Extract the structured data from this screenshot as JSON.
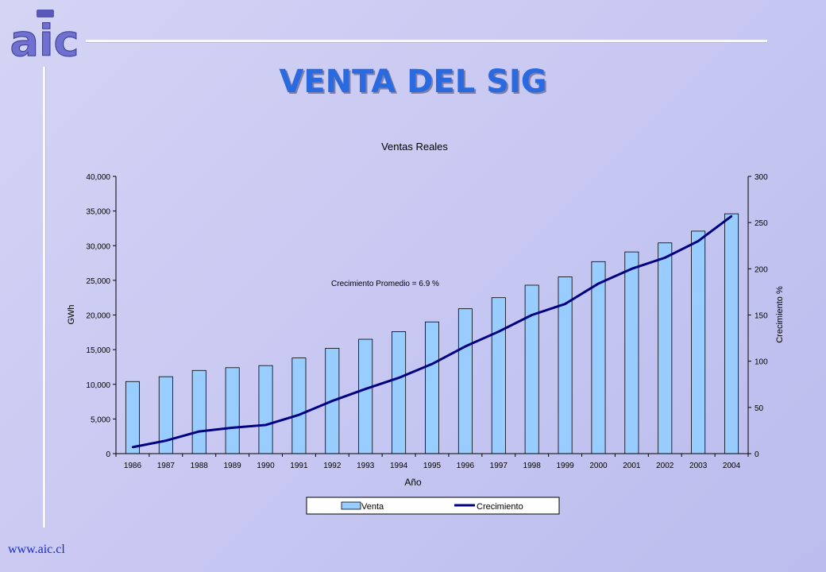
{
  "header": {
    "logo_text": "aic",
    "slide_title": "VENTA DEL SIG"
  },
  "footer": {
    "url": "www.aic.cl"
  },
  "colors": {
    "title": "#2a6ae0",
    "bar": "#99ccff",
    "line": "#000080",
    "accent": "#1a2eb8"
  },
  "chart_data": {
    "type": "bar",
    "title": "Ventas Reales",
    "xlabel": "Año",
    "ylabel": "GWh",
    "y2label": "Crecimiento %",
    "annotation": "Crecimiento Promedio = 6.9 %",
    "categories": [
      "1986",
      "1987",
      "1988",
      "1989",
      "1990",
      "1991",
      "1992",
      "1993",
      "1994",
      "1995",
      "1996",
      "1997",
      "1998",
      "1999",
      "2000",
      "2001",
      "2002",
      "2003",
      "2004"
    ],
    "ylim": [
      0,
      40000
    ],
    "y_ticks": [
      "0",
      "5,000",
      "10,000",
      "15,000",
      "20,000",
      "25,000",
      "30,000",
      "35,000",
      "40,000"
    ],
    "y2lim": [
      0,
      300
    ],
    "y2_ticks": [
      "0",
      "50",
      "100",
      "150",
      "200",
      "250",
      "300"
    ],
    "legend_position": "bottom",
    "series": [
      {
        "name": "Venta",
        "type": "bar",
        "axis": "left",
        "values": [
          10400,
          11100,
          12000,
          12400,
          12700,
          13800,
          15200,
          16500,
          17600,
          19000,
          20900,
          22500,
          24300,
          25500,
          27700,
          29100,
          30400,
          32100,
          34600
        ]
      },
      {
        "name": "Crecimiento",
        "type": "line",
        "axis": "right",
        "values": [
          7,
          14,
          24,
          28,
          31,
          42,
          57,
          70,
          82,
          97,
          116,
          132,
          150,
          162,
          184,
          200,
          212,
          230,
          257
        ]
      }
    ]
  }
}
